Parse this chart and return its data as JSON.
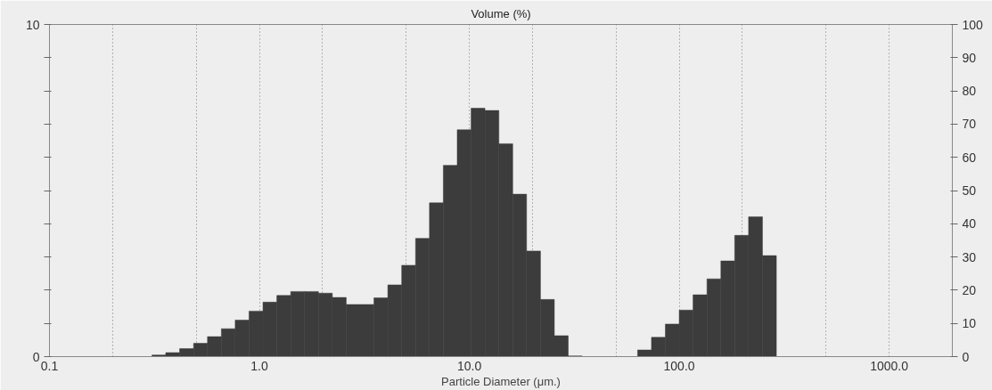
{
  "chart_data": {
    "type": "histogram",
    "title": "Volume (%)",
    "xlabel": "Particle Diameter (μm.)",
    "log": "x",
    "grid": "x",
    "color": "#3c3c3c",
    "bins": [
      0.308,
      0.358,
      0.417,
      0.486,
      0.566,
      0.659,
      0.767,
      0.893,
      1.04,
      1.211,
      1.41,
      1.642,
      1.911,
      2.226,
      2.592,
      3.018,
      3.514,
      4.091,
      4.764,
      5.547,
      6.459,
      7.521,
      8.758,
      10.2,
      11.87,
      13.83,
      16.1,
      18.74,
      21.83,
      25.41,
      29.59,
      34.46,
      40.12,
      46.72,
      54.4,
      63.34,
      73.76,
      85.88,
      100,
      116.4,
      135.6,
      157.9,
      183.8,
      214.0,
      249.2,
      290.2
    ],
    "values": [
      0.05,
      0.12,
      0.24,
      0.4,
      0.6,
      0.84,
      1.1,
      1.37,
      1.64,
      1.84,
      1.96,
      1.96,
      1.91,
      1.78,
      1.57,
      1.57,
      1.77,
      2.16,
      2.75,
      3.56,
      4.63,
      5.76,
      6.83,
      7.48,
      7.41,
      6.41,
      4.89,
      3.18,
      1.72,
      0.63,
      0.02,
      0,
      0,
      0,
      0,
      0.2,
      0.58,
      0.98,
      1.4,
      1.86,
      2.34,
      2.88,
      3.65,
      4.21,
      3.04
    ],
    "xlim": [
      0.1,
      2000
    ],
    "xticks": [
      0.1,
      {
        "value": 0.2,
        "label": null
      },
      {
        "value": 0.5,
        "label": null
      },
      {
        "value": 1,
        "label": "1.0"
      },
      {
        "value": 2,
        "label": null
      },
      {
        "value": 5,
        "label": null
      },
      {
        "value": 10,
        "label": "10.0"
      },
      {
        "value": 20,
        "label": null
      },
      {
        "value": 50,
        "label": null
      },
      {
        "value": 100,
        "label": "100.0"
      },
      {
        "value": 200,
        "label": null
      },
      {
        "value": 500,
        "label": null
      },
      {
        "value": 1000,
        "label": "1000.0"
      }
    ],
    "ylim": [
      0,
      10
    ],
    "yticks": [
      0,
      {
        "value": 1,
        "label": null
      },
      {
        "value": 2,
        "label": null
      },
      {
        "value": 3,
        "label": null
      },
      {
        "value": 4,
        "label": null
      },
      {
        "value": 5,
        "label": null
      },
      {
        "value": 6,
        "label": null
      },
      {
        "value": 7,
        "label": null
      },
      {
        "value": 8,
        "label": null
      },
      {
        "value": 9,
        "label": null
      },
      10
    ],
    "y2lim": [
      0,
      100
    ],
    "y2ticks": [
      0,
      10,
      20,
      30,
      40,
      50,
      60,
      70,
      80,
      90,
      100
    ]
  }
}
